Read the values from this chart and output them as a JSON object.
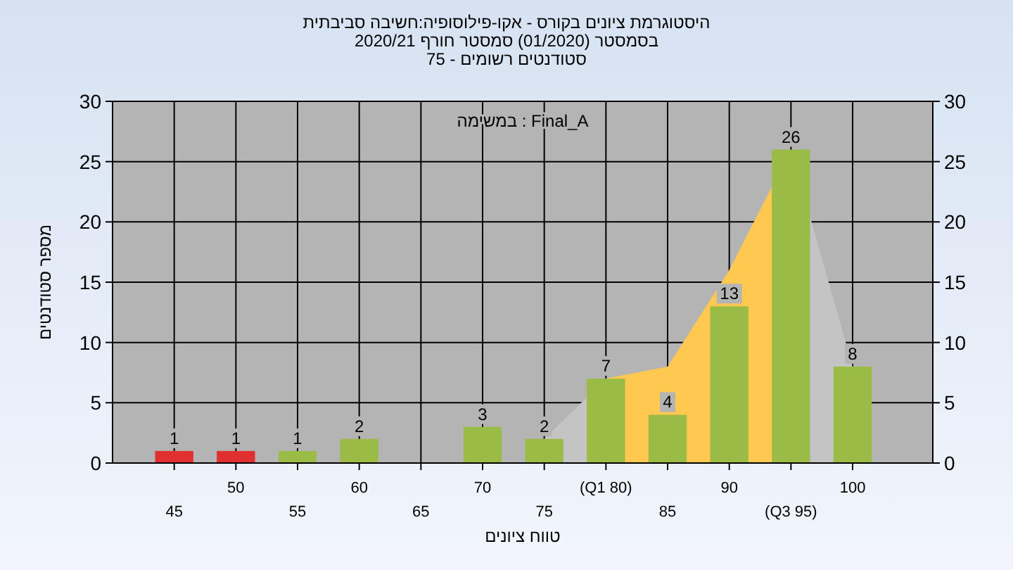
{
  "chart_data": {
    "type": "bar",
    "title": "היסטוגרמת ציונים בקורס - אקו-פילוסופיה:חשיבה סביבתית",
    "subtitle": "בסמסטר  (01/2020)  סמסטר חורף 2020/21\nסטודנטים רשומים - 75",
    "xlabel": "טווח ציונים",
    "ylabel": "מספר סטודנטים",
    "annotations": [
      "במשימה : Final_A"
    ],
    "categories": [
      "45",
      "50",
      "55",
      "60",
      "65",
      "70",
      "75",
      "(Q1 80)",
      "85",
      "90",
      "(Q3 95)",
      "100"
    ],
    "series": [
      {
        "type": "area",
        "color": "#c4c4c4",
        "values": [
          null,
          null,
          null,
          null,
          null,
          null,
          2,
          7,
          null,
          null,
          26,
          8
        ]
      },
      {
        "type": "area",
        "color": "#ffc850",
        "values": [
          null,
          null,
          null,
          null,
          null,
          null,
          null,
          7,
          8,
          16,
          26,
          null
        ]
      },
      {
        "colors": [
          "#e03030",
          "#e03030",
          "#9bbb47",
          "#9bbb47",
          null,
          "#9bbb47",
          "#9bbb47",
          "#9bbb47",
          "#9bbb47",
          "#9bbb47",
          "#9bbb47",
          "#9bbb47"
        ],
        "values": [
          1,
          1,
          1,
          2,
          null,
          3,
          2,
          7,
          4,
          13,
          26,
          8
        ],
        "value_labels": [
          "1",
          "1",
          "1",
          "2",
          null,
          "3",
          "2",
          "7",
          "4",
          "13",
          "26",
          "8"
        ]
      }
    ],
    "ylim": [
      0,
      30
    ],
    "yticks": [
      0,
      5,
      10,
      15,
      20,
      25,
      30
    ],
    "y2lim": [
      0,
      30
    ],
    "y2ticks": [
      0,
      5,
      10,
      15,
      20,
      25,
      30
    ],
    "grid": true
  }
}
